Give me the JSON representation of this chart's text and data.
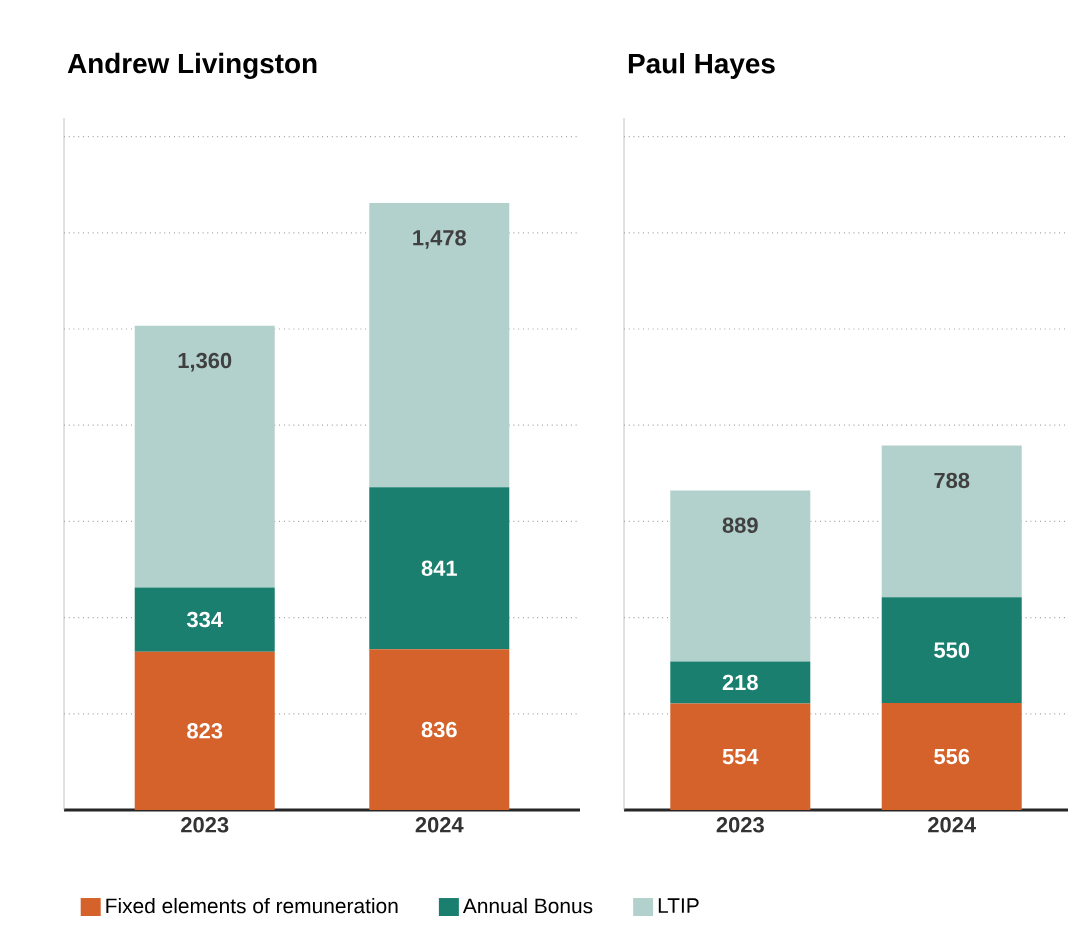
{
  "chart_data": [
    {
      "type": "bar",
      "title": "Andrew Livingston",
      "categories": [
        "2023",
        "2024"
      ],
      "stacked": true,
      "grid": "y",
      "legend": "bottom",
      "series": [
        {
          "name": "Fixed elements of remuneration",
          "color": "#d4622a",
          "values": [
            823,
            836
          ],
          "value_labels": [
            "823",
            "836"
          ]
        },
        {
          "name": "Annual Bonus",
          "color": "#1a7f6e",
          "values": [
            334,
            841
          ],
          "value_labels": [
            "334",
            "841"
          ]
        },
        {
          "name": "LTIP",
          "color": "#b3d1cc",
          "values": [
            1360,
            1478
          ],
          "value_labels": [
            "1,360",
            "1,478"
          ]
        }
      ]
    },
    {
      "type": "bar",
      "title": "Paul Hayes",
      "categories": [
        "2023",
        "2024"
      ],
      "stacked": true,
      "grid": "y",
      "series": [
        {
          "color": "#d4622a",
          "values": [
            554,
            556
          ],
          "value_labels": [
            "554",
            "556"
          ]
        },
        {
          "color": "#1a7f6e",
          "values": [
            218,
            550
          ],
          "value_labels": [
            "218",
            "550"
          ]
        },
        {
          "color": "#b3d1cc",
          "values": [
            889,
            788
          ],
          "value_labels": [
            "889",
            "788"
          ]
        }
      ]
    }
  ]
}
